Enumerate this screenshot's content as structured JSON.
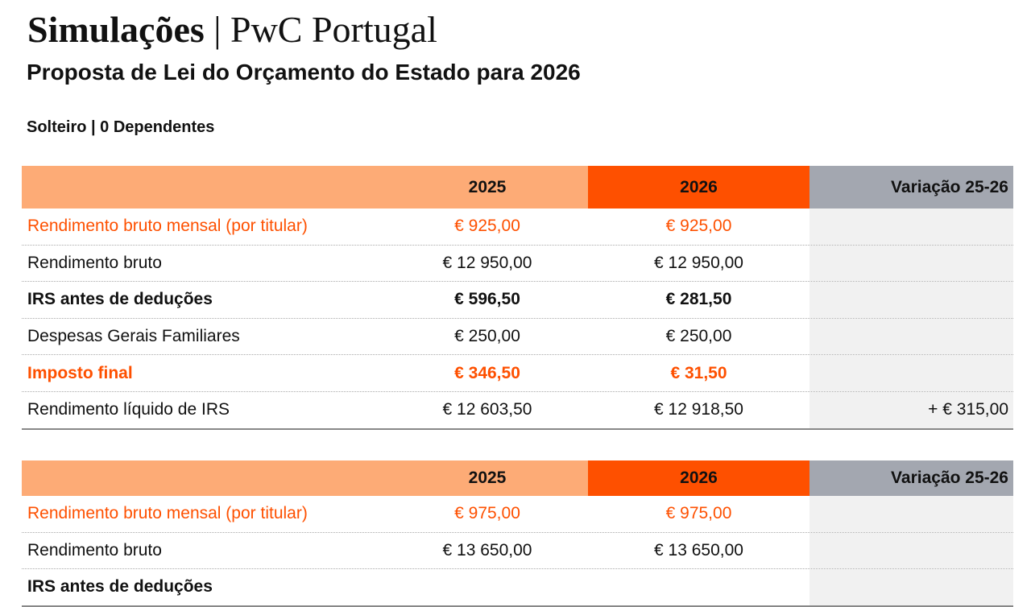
{
  "header": {
    "title_bold": "Simulações",
    "title_rest": "| PwC Portugal",
    "subtitle": "Proposta de Lei do Orçamento do Estado para 2026"
  },
  "profile": "Solteiro | 0 Dependentes",
  "tables": [
    {
      "columns": [
        "2025",
        "2026",
        "Variação 25-26"
      ],
      "rows": [
        {
          "label": "Rendimento bruto mensal (por titular)",
          "style": "accent",
          "cells": [
            "€ 925,00",
            "€ 925,00"
          ]
        },
        {
          "label": "Rendimento bruto",
          "style": "plain",
          "cells": [
            "€ 12 950,00",
            "€ 12 950,00"
          ]
        },
        {
          "label": "IRS antes de deduções",
          "style": "bold",
          "cells": [
            "€ 596,50",
            "€ 281,50"
          ]
        },
        {
          "label": "Despesas Gerais Familiares",
          "style": "plain",
          "cells": [
            "€ 250,00",
            "€ 250,00"
          ]
        },
        {
          "label": "Imposto final",
          "style": "accent bold",
          "cells": [
            "€ 346,50",
            "€ 31,50"
          ]
        },
        {
          "label": "Rendimento líquido de IRS",
          "style": "plain",
          "cells": [
            "€ 12 603,50",
            "€ 12 918,50",
            "+ € 315,00"
          ]
        }
      ]
    },
    {
      "columns": [
        "2025",
        "2026",
        "Variação 25-26"
      ],
      "rows": [
        {
          "label": "Rendimento bruto mensal (por titular)",
          "style": "accent",
          "cells": [
            "€ 975,00",
            "€ 975,00"
          ]
        },
        {
          "label": "Rendimento bruto",
          "style": "plain",
          "cells": [
            "€ 13 650,00",
            "€ 13 650,00"
          ]
        },
        {
          "label": "IRS antes de deduções",
          "style": "bold",
          "cells": []
        }
      ]
    }
  ]
}
